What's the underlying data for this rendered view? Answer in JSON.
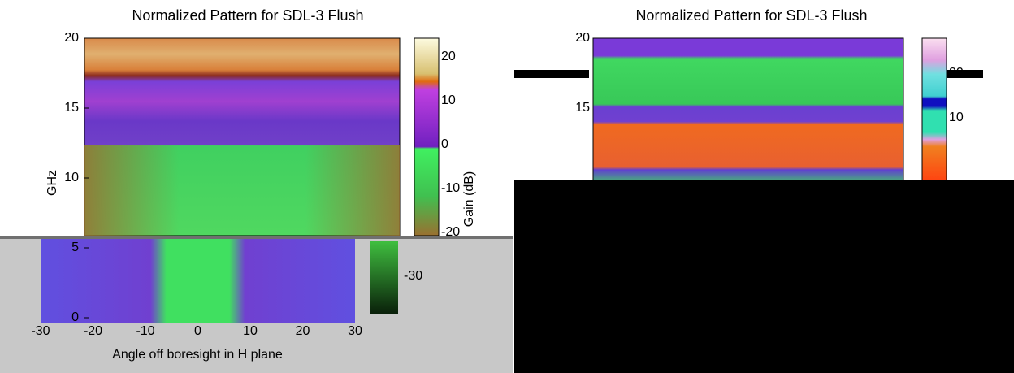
{
  "left_panel": {
    "title": "Normalized Pattern for SDL-3 Flush",
    "y_label": "GHz",
    "x_label": "Angle off boresight in H plane",
    "colorbar_label": "Gain (dB)",
    "y_ticks": [
      20,
      15,
      10,
      5,
      0
    ],
    "x_ticks": [
      -30,
      -20,
      -10,
      0,
      10,
      20,
      30
    ],
    "colorbar_ticks": [
      20,
      10,
      0,
      -10,
      -20,
      -30
    ]
  },
  "right_panel": {
    "title": "Normalized Pattern for SDL-3 Flush",
    "y_ticks": [
      20,
      15
    ],
    "colorbar_ticks": [
      20,
      10
    ]
  }
}
